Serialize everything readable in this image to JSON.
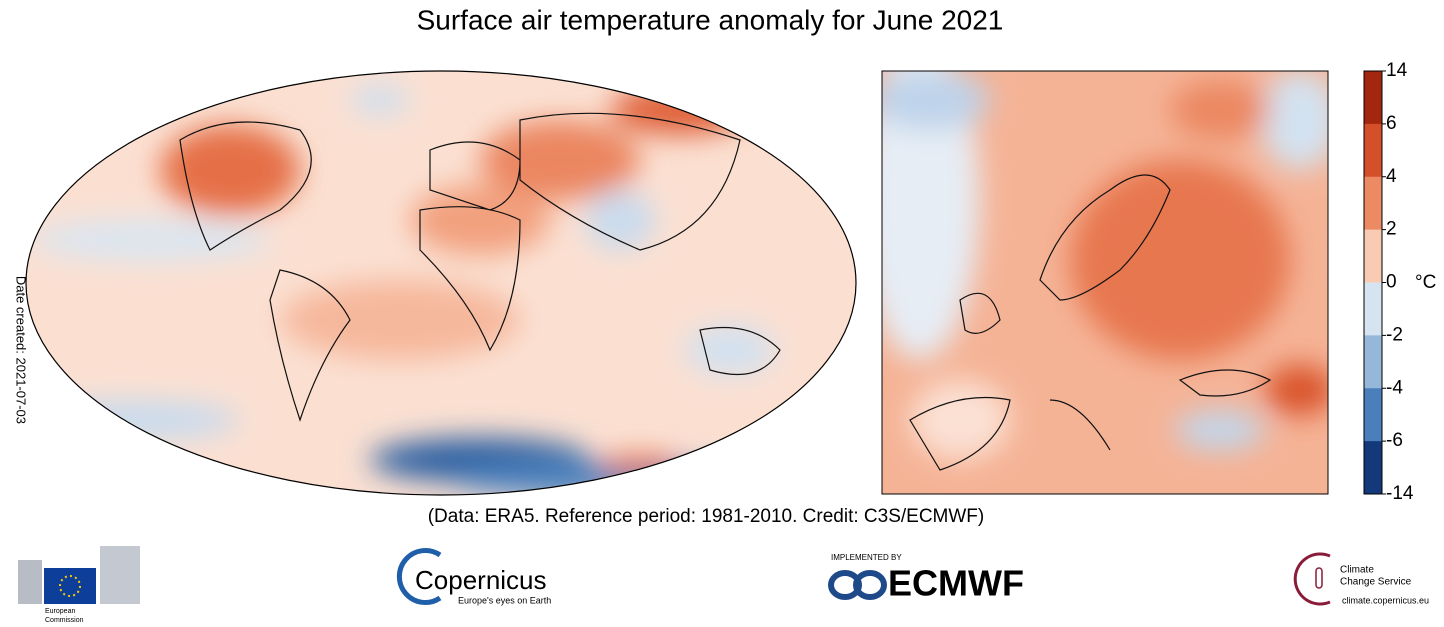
{
  "header": {
    "title": "Surface air temperature anomaly for June 2021"
  },
  "side_note": "Date created: 2021-07-03",
  "credit": "(Data: ERA5.  Reference period: 1981-2010.  Credit: C3S/ECMWF)",
  "colorbar": {
    "ticks": [
      14,
      6,
      4,
      2,
      0,
      -2,
      -4,
      -6,
      -14
    ],
    "unit": "°C",
    "colors": [
      "#a3260f",
      "#d4502a",
      "#ec8a63",
      "#f9cbb4",
      "#d6e4f1",
      "#94b7da",
      "#4a7fbb",
      "#13397a"
    ]
  },
  "logos": {
    "eu_line1": "European",
    "eu_line2": "Commission",
    "copernicus": "Copernicus",
    "copernicus_tagline": "Europe's eyes on Earth",
    "ecmwf_pre": "IMPLEMENTED BY",
    "ecmwf": "ECMWF",
    "c3s_line1": "Climate",
    "c3s_line2": "Change Service",
    "c3s_url": "climate.copernicus.eu"
  }
}
